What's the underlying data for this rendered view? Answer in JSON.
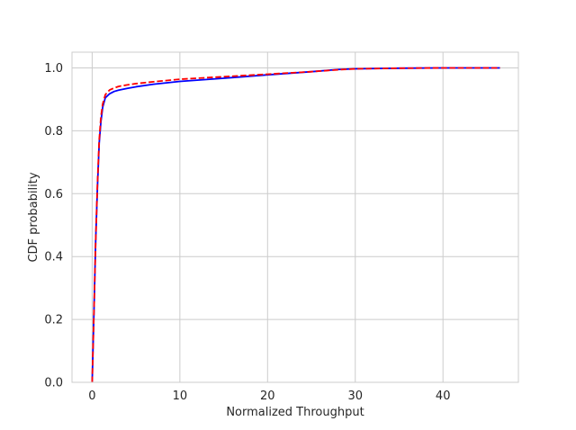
{
  "chart_data": {
    "type": "line",
    "title": "",
    "xlabel": "Normalized Throughput",
    "ylabel": "CDF probability",
    "xlim": [
      -2.3,
      48.6
    ],
    "ylim": [
      0.0,
      1.05
    ],
    "xticks": [
      0,
      10,
      20,
      30,
      40
    ],
    "yticks": [
      0.0,
      0.2,
      0.4,
      0.6,
      0.8,
      1.0
    ],
    "xtick_labels": [
      "0",
      "10",
      "20",
      "30",
      "40"
    ],
    "ytick_labels": [
      "0.0",
      "0.2",
      "0.4",
      "0.6",
      "0.8",
      "1.0"
    ],
    "grid": true,
    "legend": null,
    "series": [
      {
        "color": "#0000ff",
        "style": "solid",
        "x": [
          0.0,
          0.2,
          0.4,
          0.6,
          0.8,
          1.0,
          1.2,
          1.5,
          2.0,
          2.5,
          3.0,
          4.0,
          5.0,
          7.0,
          10.0,
          15.0,
          20.0,
          25.0,
          28.0,
          30.0,
          35.0,
          40.0,
          46.5
        ],
        "y": [
          0.0,
          0.22,
          0.45,
          0.62,
          0.76,
          0.83,
          0.875,
          0.905,
          0.918,
          0.925,
          0.929,
          0.935,
          0.94,
          0.948,
          0.957,
          0.967,
          0.978,
          0.988,
          0.995,
          0.997,
          0.999,
          1.0,
          1.0
        ]
      },
      {
        "color": "#ff0000",
        "style": "dashed",
        "x": [
          0.0,
          0.2,
          0.4,
          0.6,
          0.8,
          1.0,
          1.2,
          1.5,
          2.0,
          2.5,
          3.0,
          4.0,
          5.0,
          7.0,
          10.0,
          15.0,
          20.0,
          25.0,
          28.0,
          30.0,
          35.0,
          40.0,
          46.5
        ],
        "y": [
          0.0,
          0.22,
          0.45,
          0.63,
          0.77,
          0.845,
          0.885,
          0.915,
          0.93,
          0.936,
          0.941,
          0.946,
          0.95,
          0.956,
          0.964,
          0.972,
          0.98,
          0.988,
          0.994,
          0.997,
          0.999,
          1.0,
          1.0
        ]
      }
    ]
  }
}
